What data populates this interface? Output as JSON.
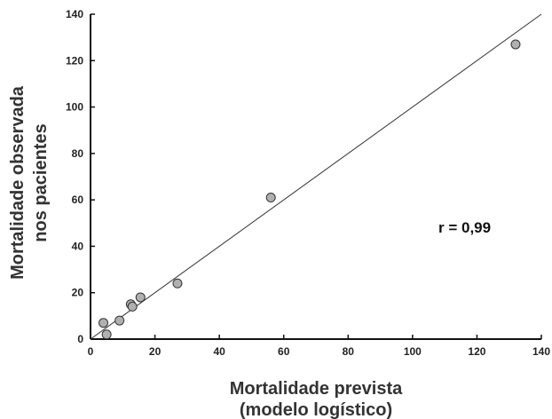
{
  "chart_data": {
    "type": "scatter",
    "title": "",
    "xlabel": [
      "Mortalidade prevista",
      "(modelo logístico)"
    ],
    "ylabel": [
      "Mortalidade observada",
      "nos pacientes"
    ],
    "xlim": [
      0,
      140
    ],
    "ylim": [
      0,
      140
    ],
    "xticks": [
      0,
      20,
      40,
      60,
      80,
      100,
      120,
      140
    ],
    "yticks": [
      0,
      20,
      40,
      60,
      80,
      100,
      120,
      140
    ],
    "grid": false,
    "legend": "none",
    "fit_line": {
      "from": [
        0,
        0
      ],
      "to": [
        140,
        140
      ]
    },
    "annotation": "r = 0,99",
    "points": [
      {
        "x": 4,
        "y": 7
      },
      {
        "x": 5,
        "y": 2
      },
      {
        "x": 9,
        "y": 8
      },
      {
        "x": 12.5,
        "y": 15
      },
      {
        "x": 13,
        "y": 14
      },
      {
        "x": 15.5,
        "y": 18
      },
      {
        "x": 27,
        "y": 24
      },
      {
        "x": 56,
        "y": 61
      },
      {
        "x": 132,
        "y": 127
      }
    ],
    "colors": {
      "point_fill": "#b0b0b0",
      "point_stroke": "#333333",
      "line": "#333333"
    }
  }
}
